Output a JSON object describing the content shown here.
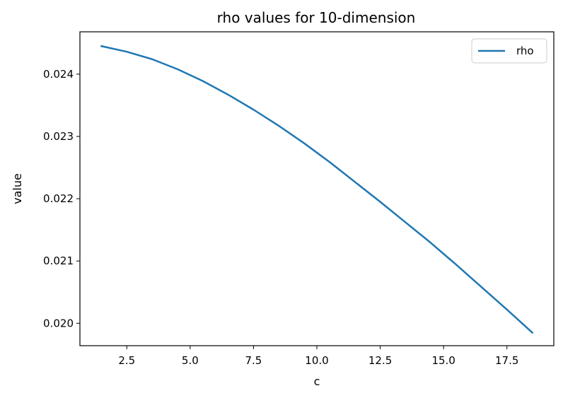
{
  "chart_data": {
    "type": "line",
    "title": "rho values for 10-dimension",
    "xlabel": "c",
    "ylabel": "value",
    "xlim": [
      0.65,
      19.35
    ],
    "ylim": [
      0.01964,
      0.02468
    ],
    "xticks": [
      2.5,
      5.0,
      7.5,
      10.0,
      12.5,
      15.0,
      17.5
    ],
    "xtick_labels": [
      "2.5",
      "5.0",
      "7.5",
      "10.0",
      "12.5",
      "15.0",
      "17.5"
    ],
    "yticks": [
      0.02,
      0.021,
      0.022,
      0.023,
      0.024
    ],
    "ytick_labels": [
      "0.020",
      "0.021",
      "0.022",
      "0.023",
      "0.024"
    ],
    "grid": false,
    "legend_position": "top-right",
    "line_color": "#1f77b4",
    "series": [
      {
        "name": "rho",
        "x": [
          1.5,
          2.5,
          3.5,
          4.5,
          5.5,
          6.5,
          7.5,
          8.5,
          9.5,
          10.5,
          11.5,
          12.5,
          13.5,
          14.5,
          15.5,
          16.5,
          17.5,
          18.5
        ],
        "values": [
          0.02445,
          0.02436,
          0.02424,
          0.02408,
          0.02389,
          0.02367,
          0.02343,
          0.02317,
          0.02289,
          0.02259,
          0.02227,
          0.02195,
          0.02162,
          0.02129,
          0.02094,
          0.02058,
          0.02022,
          0.01985
        ]
      }
    ]
  }
}
